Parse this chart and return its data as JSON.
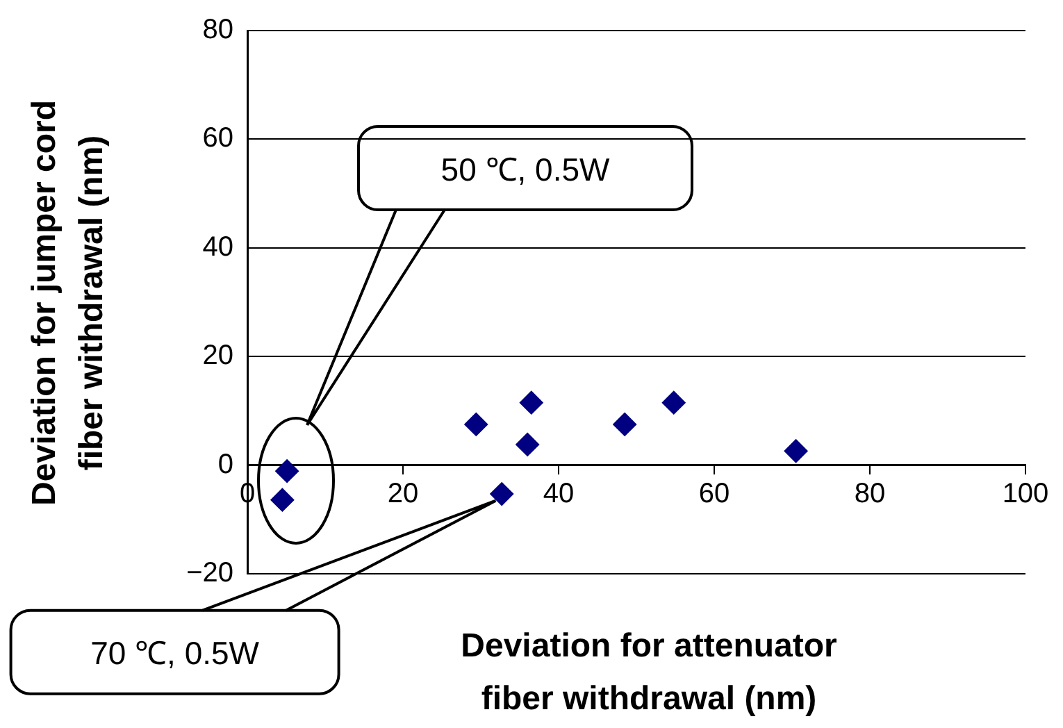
{
  "chart_data": {
    "type": "scatter",
    "xlabel": "Deviation for attenuator\nfiber withdrawal (nm)",
    "ylabel": "Deviation for jumper cord\nfiber withdrawal (nm)",
    "x": [
      5.1,
      4.5,
      29.4,
      36.5,
      36,
      48.5,
      54.8,
      70.5,
      32.7
    ],
    "series": [
      {
        "color": "#000080",
        "values": [
          -1.1,
          -6.4,
          7.5,
          11.5,
          3.8,
          7.5,
          11.5,
          2.6,
          -5.3
        ]
      }
    ],
    "xlim": [
      0,
      100
    ],
    "xticks": [
      0,
      20,
      40,
      60,
      80,
      100
    ],
    "ylim": [
      -20,
      80
    ],
    "yticks": [
      -20,
      0,
      20,
      40,
      60,
      80
    ],
    "grid": "y",
    "marker": "diamond",
    "legend": false,
    "annotations": [
      "50 ℃, 0.5W",
      {
        "text": "70 ℃, 0.5W",
        "x": 33,
        "y": -5
      }
    ]
  }
}
